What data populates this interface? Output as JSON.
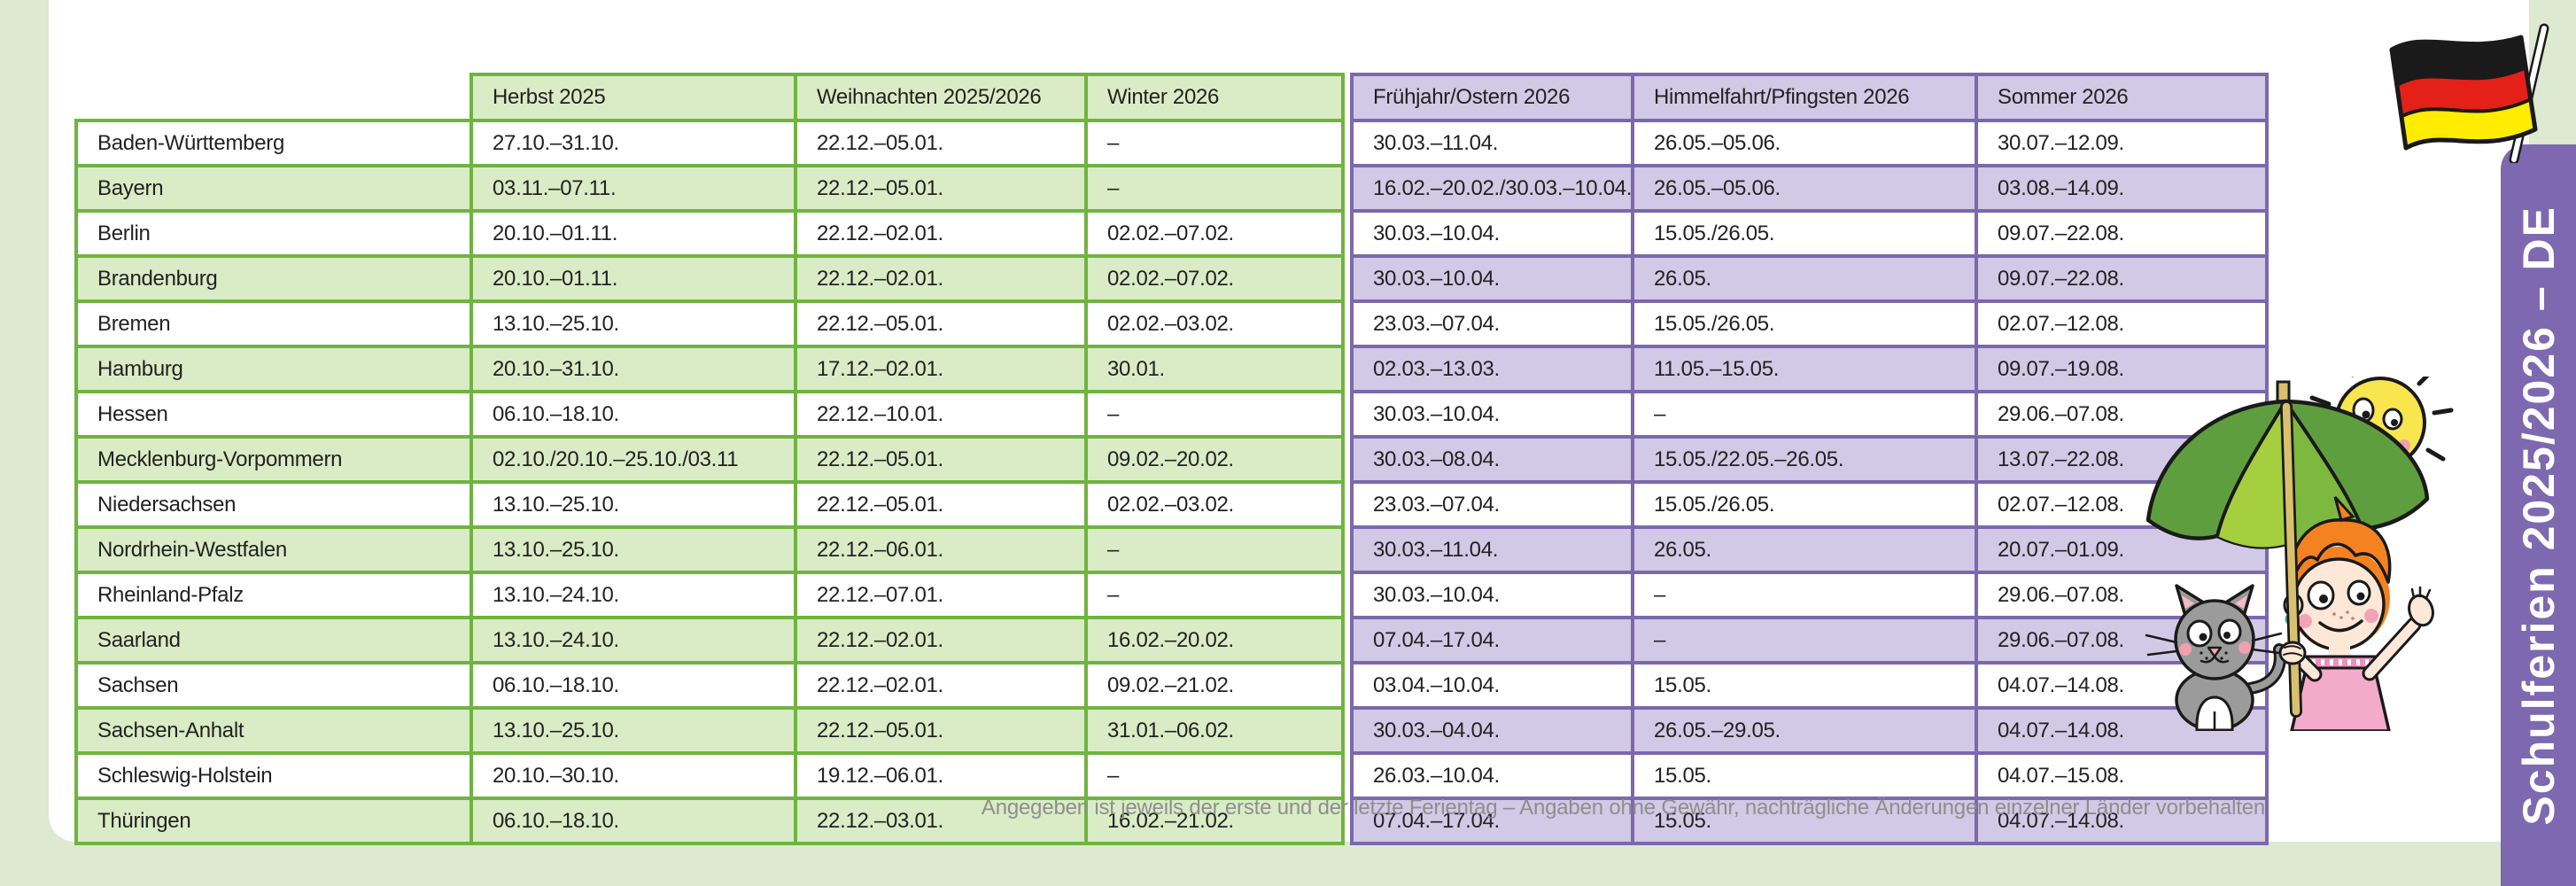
{
  "banner": {
    "label": "Schulferien 2025/2026 – DE"
  },
  "table": {
    "green_headers": [
      "Herbst 2025",
      "Weihnachten 2025/2026",
      "Winter 2026"
    ],
    "purple_headers": [
      "Frühjahr/Ostern 2026",
      "Himmelfahrt/Pfingsten 2026",
      "Sommer 2026"
    ],
    "rows": [
      {
        "state": "Baden-Württemberg",
        "herbst": "27.10.–31.10.",
        "weihnachten": "22.12.–05.01.",
        "winter": "–",
        "fruehjahr": "30.03.–11.04.",
        "himmelfahrt": "26.05.–05.06.",
        "sommer": "30.07.–12.09."
      },
      {
        "state": "Bayern",
        "herbst": "03.11.–07.11.",
        "weihnachten": "22.12.–05.01.",
        "winter": "–",
        "fruehjahr": "16.02.–20.02./30.03.–10.04.",
        "himmelfahrt": "26.05.–05.06.",
        "sommer": "03.08.–14.09."
      },
      {
        "state": "Berlin",
        "herbst": "20.10.–01.11.",
        "weihnachten": "22.12.–02.01.",
        "winter": "02.02.–07.02.",
        "fruehjahr": "30.03.–10.04.",
        "himmelfahrt": "15.05./26.05.",
        "sommer": "09.07.–22.08."
      },
      {
        "state": "Brandenburg",
        "herbst": "20.10.–01.11.",
        "weihnachten": "22.12.–02.01.",
        "winter": "02.02.–07.02.",
        "fruehjahr": "30.03.–10.04.",
        "himmelfahrt": "26.05.",
        "sommer": "09.07.–22.08."
      },
      {
        "state": "Bremen",
        "herbst": "13.10.–25.10.",
        "weihnachten": "22.12.–05.01.",
        "winter": "02.02.–03.02.",
        "fruehjahr": "23.03.–07.04.",
        "himmelfahrt": "15.05./26.05.",
        "sommer": "02.07.–12.08."
      },
      {
        "state": "Hamburg",
        "herbst": "20.10.–31.10.",
        "weihnachten": "17.12.–02.01.",
        "winter": "30.01.",
        "fruehjahr": "02.03.–13.03.",
        "himmelfahrt": "11.05.–15.05.",
        "sommer": "09.07.–19.08."
      },
      {
        "state": "Hessen",
        "herbst": "06.10.–18.10.",
        "weihnachten": "22.12.–10.01.",
        "winter": "–",
        "fruehjahr": "30.03.–10.04.",
        "himmelfahrt": "–",
        "sommer": "29.06.–07.08."
      },
      {
        "state": "Mecklenburg-Vorpommern",
        "herbst": "02.10./20.10.–25.10./03.11",
        "weihnachten": "22.12.–05.01.",
        "winter": "09.02.–20.02.",
        "fruehjahr": "30.03.–08.04.",
        "himmelfahrt": "15.05./22.05.–26.05.",
        "sommer": "13.07.–22.08."
      },
      {
        "state": "Niedersachsen",
        "herbst": "13.10.–25.10.",
        "weihnachten": "22.12.–05.01.",
        "winter": "02.02.–03.02.",
        "fruehjahr": "23.03.–07.04.",
        "himmelfahrt": "15.05./26.05.",
        "sommer": "02.07.–12.08."
      },
      {
        "state": "Nordrhein-Westfalen",
        "herbst": "13.10.–25.10.",
        "weihnachten": "22.12.–06.01.",
        "winter": "–",
        "fruehjahr": "30.03.–11.04.",
        "himmelfahrt": "26.05.",
        "sommer": "20.07.–01.09."
      },
      {
        "state": "Rheinland-Pfalz",
        "herbst": "13.10.–24.10.",
        "weihnachten": "22.12.–07.01.",
        "winter": "–",
        "fruehjahr": "30.03.–10.04.",
        "himmelfahrt": "–",
        "sommer": "29.06.–07.08."
      },
      {
        "state": "Saarland",
        "herbst": "13.10.–24.10.",
        "weihnachten": "22.12.–02.01.",
        "winter": "16.02.–20.02.",
        "fruehjahr": "07.04.–17.04.",
        "himmelfahrt": "–",
        "sommer": "29.06.–07.08."
      },
      {
        "state": "Sachsen",
        "herbst": "06.10.–18.10.",
        "weihnachten": "22.12.–02.01.",
        "winter": "09.02.–21.02.",
        "fruehjahr": "03.04.–10.04.",
        "himmelfahrt": "15.05.",
        "sommer": "04.07.–14.08."
      },
      {
        "state": "Sachsen-Anhalt",
        "herbst": "13.10.–25.10.",
        "weihnachten": "22.12.–05.01.",
        "winter": "31.01.–06.02.",
        "fruehjahr": "30.03.–04.04.",
        "himmelfahrt": "26.05.–29.05.",
        "sommer": "04.07.–14.08."
      },
      {
        "state": "Schleswig-Holstein",
        "herbst": "20.10.–30.10.",
        "weihnachten": "19.12.–06.01.",
        "winter": "–",
        "fruehjahr": "26.03.–10.04.",
        "himmelfahrt": "15.05.",
        "sommer": "04.07.–15.08."
      },
      {
        "state": "Thüringen",
        "herbst": "06.10.–18.10.",
        "weihnachten": "22.12.–03.01.",
        "winter": "16.02.–21.02.",
        "fruehjahr": "07.04.–17.04.",
        "himmelfahrt": "15.05.",
        "sommer": "04.07.–14.08."
      }
    ]
  },
  "footer": {
    "note": "Angegeben ist jeweils der erste und der letzte Ferientag – Angaben ohne Gewähr, nachträgliche Änderungen einzelner Länder vorbehalten"
  },
  "colors": {
    "page_bg": "#dde9d0",
    "green_border": "#6fb440",
    "green_fill": "#d9ecc6",
    "purple_border": "#7c68ad",
    "purple_fill": "#d1c9e5",
    "banner_purple": "#7e68b0",
    "flag_black": "#1a1a1a",
    "flag_red": "#e32119",
    "flag_gold": "#ffec00"
  },
  "illustration": {
    "icons": [
      "german-flag-icon",
      "sun-icon",
      "umbrella-icon",
      "girl-illustration",
      "cat-icon"
    ]
  }
}
